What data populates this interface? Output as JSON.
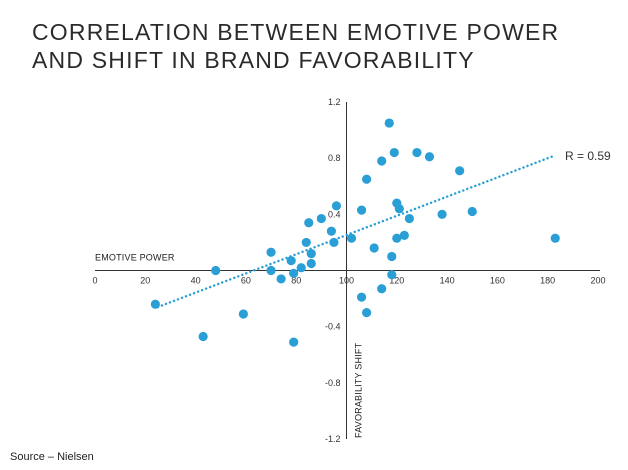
{
  "title": "CORRELATION BETWEEN EMOTIVE POWER AND SHIFT IN BRAND FAVORABILITY",
  "source": "Source – Nielsen",
  "chart_data": {
    "type": "scatter",
    "title": "CORRELATION BETWEEN EMOTIVE POWER AND SHIFT IN BRAND FAVORABILITY",
    "xlabel": "EMOTIVE POWER",
    "ylabel": "FAVORABILITY SHIFT",
    "xlim": [
      0,
      200
    ],
    "ylim": [
      -1.2,
      1.2
    ],
    "x_ticks": [
      "0",
      "20",
      "40",
      "60",
      "80",
      "100",
      "120",
      "140",
      "160",
      "180",
      "200"
    ],
    "y_ticks": [
      "1.2",
      "0.8",
      "0.4",
      "-0.4",
      "-0.8",
      "-1.2"
    ],
    "y_axis_at_x": 100,
    "x_axis_at_y": 0,
    "grid": false,
    "marker_color": "#2a9fd6",
    "trend_color": "#2a9fd6",
    "trendline": {
      "x": [
        25,
        183
      ],
      "y": [
        -0.26,
        0.82
      ],
      "style": "dotted"
    },
    "annotation": "R = 0.59",
    "points": [
      {
        "x": 24,
        "y": -0.24
      },
      {
        "x": 43,
        "y": -0.47
      },
      {
        "x": 48,
        "y": 0.0
      },
      {
        "x": 59,
        "y": -0.31
      },
      {
        "x": 70,
        "y": 0.13
      },
      {
        "x": 70,
        "y": 0.0
      },
      {
        "x": 74,
        "y": -0.06
      },
      {
        "x": 78,
        "y": 0.07
      },
      {
        "x": 79,
        "y": -0.51
      },
      {
        "x": 79,
        "y": -0.02
      },
      {
        "x": 82,
        "y": 0.02
      },
      {
        "x": 84,
        "y": 0.2
      },
      {
        "x": 85,
        "y": 0.34
      },
      {
        "x": 86,
        "y": 0.12
      },
      {
        "x": 86,
        "y": 0.05
      },
      {
        "x": 90,
        "y": 0.37
      },
      {
        "x": 94,
        "y": 0.28
      },
      {
        "x": 95,
        "y": 0.2
      },
      {
        "x": 96,
        "y": 0.46
      },
      {
        "x": 102,
        "y": 0.23
      },
      {
        "x": 106,
        "y": 0.43
      },
      {
        "x": 106,
        "y": -0.19
      },
      {
        "x": 108,
        "y": -0.3
      },
      {
        "x": 108,
        "y": 0.65
      },
      {
        "x": 111,
        "y": 0.16
      },
      {
        "x": 114,
        "y": 0.78
      },
      {
        "x": 114,
        "y": -0.13
      },
      {
        "x": 117,
        "y": 1.05
      },
      {
        "x": 118,
        "y": -0.03
      },
      {
        "x": 118,
        "y": 0.1
      },
      {
        "x": 119,
        "y": 0.84
      },
      {
        "x": 120,
        "y": 0.48
      },
      {
        "x": 120,
        "y": 0.23
      },
      {
        "x": 121,
        "y": 0.44
      },
      {
        "x": 123,
        "y": 0.25
      },
      {
        "x": 125,
        "y": 0.37
      },
      {
        "x": 128,
        "y": 0.84
      },
      {
        "x": 133,
        "y": 0.81
      },
      {
        "x": 138,
        "y": 0.4
      },
      {
        "x": 145,
        "y": 0.71
      },
      {
        "x": 150,
        "y": 0.42
      },
      {
        "x": 183,
        "y": 0.23
      }
    ]
  }
}
